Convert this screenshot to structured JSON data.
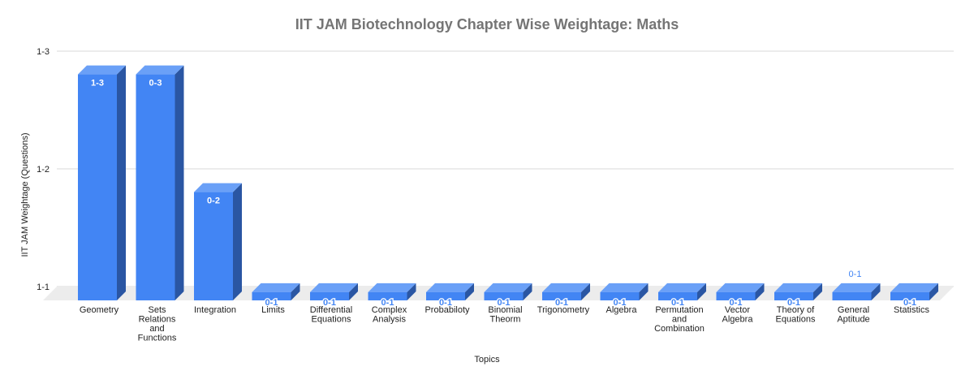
{
  "chart_data": {
    "type": "bar",
    "style": "3d-column",
    "title": "IIT JAM Biotechnology Chapter Wise Weightage: Maths",
    "xlabel": "Topics",
    "ylabel": "IIT JAM Weightage (Questions)",
    "y_ticks": [
      "1-1",
      "1-2",
      "1-3"
    ],
    "ylim": [
      0,
      2
    ],
    "grid": true,
    "legend": "none",
    "categories": [
      "Geometry",
      "Sets Relations and Functions",
      "Integration",
      "Limits",
      "Differential Equations",
      "Complex Analysis",
      "Probabiloty",
      "Binomial Theorm",
      "Trigonometry",
      "Algebra",
      "Permutation and Combination",
      "Vector Algebra",
      "Theory of Equations",
      "General Aptitude",
      "Statistics"
    ],
    "category_label_lines": [
      [
        "Geometry"
      ],
      [
        "Sets",
        "Relations",
        "and",
        "Functions"
      ],
      [
        "Integration"
      ],
      [
        "Limits"
      ],
      [
        "Differential",
        "Equations"
      ],
      [
        "Complex",
        "Analysis"
      ],
      [
        "Probabiloty"
      ],
      [
        "Binomial",
        "Theorm"
      ],
      [
        "Trigonometry"
      ],
      [
        "Algebra"
      ],
      [
        "Permutation",
        "and",
        "Combination"
      ],
      [
        "Vector",
        "Algebra"
      ],
      [
        "Theory of",
        "Equations"
      ],
      [
        "General",
        "Aptitude"
      ],
      [
        "Statistics"
      ]
    ],
    "values": [
      1.92,
      1.92,
      0.92,
      0.07,
      0.07,
      0.07,
      0.07,
      0.07,
      0.07,
      0.07,
      0.07,
      0.07,
      0.07,
      0.07,
      0.07
    ],
    "data_labels": [
      "1-3",
      "0-3",
      "0-2",
      "0-1",
      "0-1",
      "0-1",
      "0-1",
      "0-1",
      "0-1",
      "0-1",
      "0-1",
      "0-1",
      "0-1",
      "0-1",
      "0-1"
    ],
    "series": [
      {
        "name": "IIT JAM Weightage (Questions)",
        "values": [
          1.92,
          1.92,
          0.92,
          0.07,
          0.07,
          0.07,
          0.07,
          0.07,
          0.07,
          0.07,
          0.07,
          0.07,
          0.07,
          0.07,
          0.07
        ]
      }
    ],
    "colors": {
      "bar_front": "#4285f4",
      "bar_side": "#2a56a3",
      "bar_top": "#6aa0f7",
      "gridline": "#d9d9d9",
      "floor": "#ececec",
      "title": "#757575",
      "label_dark": "#222222",
      "label_on_bar": "#ffffff",
      "label_small": "#4285f4"
    }
  }
}
